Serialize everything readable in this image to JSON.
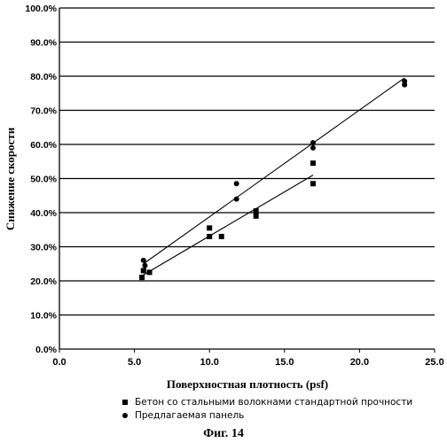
{
  "chart_data": {
    "type": "scatter",
    "title": "",
    "xlabel": "Поверхностная плотность (psf)",
    "ylabel": "Снижение скорости",
    "xlim": [
      0,
      25
    ],
    "ylim": [
      0,
      100
    ],
    "x_ticks": [
      "0.0",
      "5.0",
      "10.0",
      "15.0",
      "20.0",
      "25.0"
    ],
    "y_ticks": [
      "0.0%",
      "10.0%",
      "20.0%",
      "30.0%",
      "40.0%",
      "50.0%",
      "60.0%",
      "70.0%",
      "80.0%",
      "90.0%",
      "100.0%"
    ],
    "grid": "horizontal",
    "legend_position": "bottom",
    "series": [
      {
        "name": "Бетон со стальными волокнами стандартной прочности",
        "marker": "square",
        "color": "#000000",
        "points": [
          [
            5.5,
            21.0
          ],
          [
            5.6,
            23.0
          ],
          [
            6.0,
            22.5
          ],
          [
            10.0,
            35.5
          ],
          [
            10.0,
            33.0
          ],
          [
            10.8,
            33.0
          ],
          [
            13.1,
            40.5
          ],
          [
            13.1,
            39.0
          ],
          [
            16.9,
            54.5
          ],
          [
            16.9,
            48.5
          ]
        ],
        "trendline": [
          [
            5.5,
            21.5
          ],
          [
            16.9,
            51.0
          ]
        ]
      },
      {
        "name": "Предлагаемая панель",
        "marker": "circle",
        "color": "#000000",
        "points": [
          [
            5.6,
            26.0
          ],
          [
            5.7,
            24.5
          ],
          [
            11.8,
            48.5
          ],
          [
            11.8,
            44.0
          ],
          [
            16.9,
            60.5
          ],
          [
            16.9,
            59.0
          ],
          [
            23.0,
            77.5
          ],
          [
            23.0,
            78.5
          ]
        ],
        "trendline": [
          [
            5.6,
            25.0
          ],
          [
            23.0,
            79.5
          ]
        ]
      }
    ]
  },
  "legend": {
    "items": [
      "Бетон со стальными волокнами стандартной прочности",
      "Предлагаемая панель"
    ]
  },
  "caption": "Фиг. 14"
}
